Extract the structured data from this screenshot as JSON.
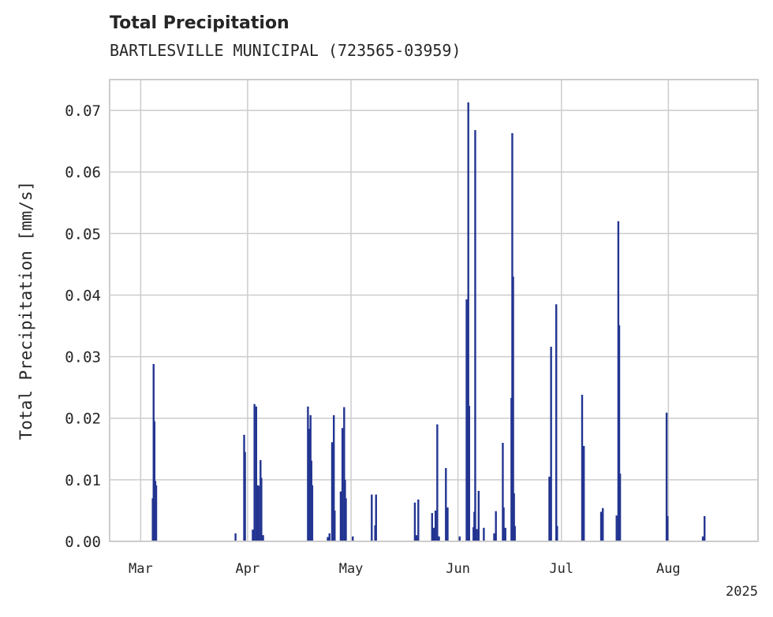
{
  "chart_data": {
    "type": "bar",
    "title": "Total Precipitation",
    "subtitle": "BARTLESVILLE MUNICIPAL (723565-03959)",
    "ylabel": "Total Precipitation [mm/s]",
    "xlabel": "",
    "ylim": [
      0,
      0.075
    ],
    "xlim": [
      "2025-02-20",
      "2025-08-27"
    ],
    "yticks": [
      "0.00",
      "0.01",
      "0.02",
      "0.03",
      "0.04",
      "0.05",
      "0.06",
      "0.07"
    ],
    "xticks": [
      {
        "date": "2025-03-01",
        "label": "Mar"
      },
      {
        "date": "2025-04-01",
        "label": "Apr"
      },
      {
        "date": "2025-05-01",
        "label": "May"
      },
      {
        "date": "2025-06-01",
        "label": "Jun"
      },
      {
        "date": "2025-07-01",
        "label": "Jul"
      },
      {
        "date": "2025-08-01",
        "label": "Aug"
      }
    ],
    "year_label": "2025",
    "grid": true,
    "color": "#233591",
    "x": [
      "2025-03-04T12:00",
      "2025-03-04T18:00",
      "2025-03-05T00:00",
      "2025-03-05T06:00",
      "2025-03-05T12:00",
      "2025-03-28T12:00",
      "2025-03-31T00:00",
      "2025-03-31T06:00",
      "2025-04-02T12:00",
      "2025-04-03T00:00",
      "2025-04-03T12:00",
      "2025-04-04T00:00",
      "2025-04-04T06:00",
      "2025-04-04T18:00",
      "2025-04-05T00:00",
      "2025-04-05T12:00",
      "2025-04-18T12:00",
      "2025-04-18T18:00",
      "2025-04-19T06:00",
      "2025-04-19T12:00",
      "2025-04-19T18:00",
      "2025-04-24T06:00",
      "2025-04-24T18:00",
      "2025-04-25T12:00",
      "2025-04-26T00:00",
      "2025-04-26T06:00",
      "2025-04-28T00:00",
      "2025-04-28T12:00",
      "2025-04-29T00:00",
      "2025-04-29T06:00",
      "2025-04-29T12:00",
      "2025-05-01T12:00",
      "2025-05-07T00:00",
      "2025-05-08T00:00",
      "2025-05-08T06:00",
      "2025-05-19T12:00",
      "2025-05-20T00:00",
      "2025-05-20T12:00",
      "2025-05-24T12:00",
      "2025-05-25T00:00",
      "2025-05-25T12:00",
      "2025-05-26T00:00",
      "2025-05-26T12:00",
      "2025-05-28T12:00",
      "2025-05-29T00:00",
      "2025-06-01T12:00",
      "2025-06-03T12:00",
      "2025-06-04T00:00",
      "2025-06-04T06:00",
      "2025-06-05T12:00",
      "2025-06-05T18:00",
      "2025-06-06T00:00",
      "2025-06-06T12:00",
      "2025-06-07T00:00",
      "2025-06-08T12:00",
      "2025-06-11T12:00",
      "2025-06-12T00:00",
      "2025-06-14T00:00",
      "2025-06-14T06:00",
      "2025-06-14T18:00",
      "2025-06-16T12:00",
      "2025-06-16T18:00",
      "2025-06-17T00:00",
      "2025-06-17T06:00",
      "2025-06-17T12:00",
      "2025-06-27T12:00",
      "2025-06-28T00:00",
      "2025-06-29T12:00",
      "2025-06-29T18:00",
      "2025-07-07T00:00",
      "2025-07-07T12:00",
      "2025-07-12T12:00",
      "2025-07-13T00:00",
      "2025-07-17T00:00",
      "2025-07-17T12:00",
      "2025-07-17T18:00",
      "2025-07-18T00:00",
      "2025-07-31T12:00",
      "2025-07-31T18:00",
      "2025-08-11T00:00",
      "2025-08-11T12:00"
    ],
    "values": [
      0.007,
      0.0288,
      0.0195,
      0.0098,
      0.0091,
      0.0013,
      0.0173,
      0.0145,
      0.0019,
      0.0223,
      0.0219,
      0.0091,
      0.009,
      0.0132,
      0.0103,
      0.001,
      0.0219,
      0.0183,
      0.0205,
      0.0131,
      0.0091,
      0.0007,
      0.0013,
      0.0161,
      0.0205,
      0.005,
      0.0081,
      0.0184,
      0.0218,
      0.01,
      0.007,
      0.0008,
      0.0076,
      0.0026,
      0.0076,
      0.0063,
      0.001,
      0.0068,
      0.0046,
      0.0022,
      0.005,
      0.019,
      0.0008,
      0.0119,
      0.0055,
      0.0008,
      0.0393,
      0.0713,
      0.022,
      0.0023,
      0.0048,
      0.0668,
      0.002,
      0.0082,
      0.0022,
      0.0013,
      0.0049,
      0.016,
      0.0055,
      0.0022,
      0.0233,
      0.0663,
      0.043,
      0.0078,
      0.0025,
      0.0105,
      0.0316,
      0.0385,
      0.0025,
      0.0238,
      0.0155,
      0.0048,
      0.0054,
      0.0042,
      0.052,
      0.0351,
      0.011,
      0.0209,
      0.0041,
      0.0008,
      0.0041
    ]
  }
}
